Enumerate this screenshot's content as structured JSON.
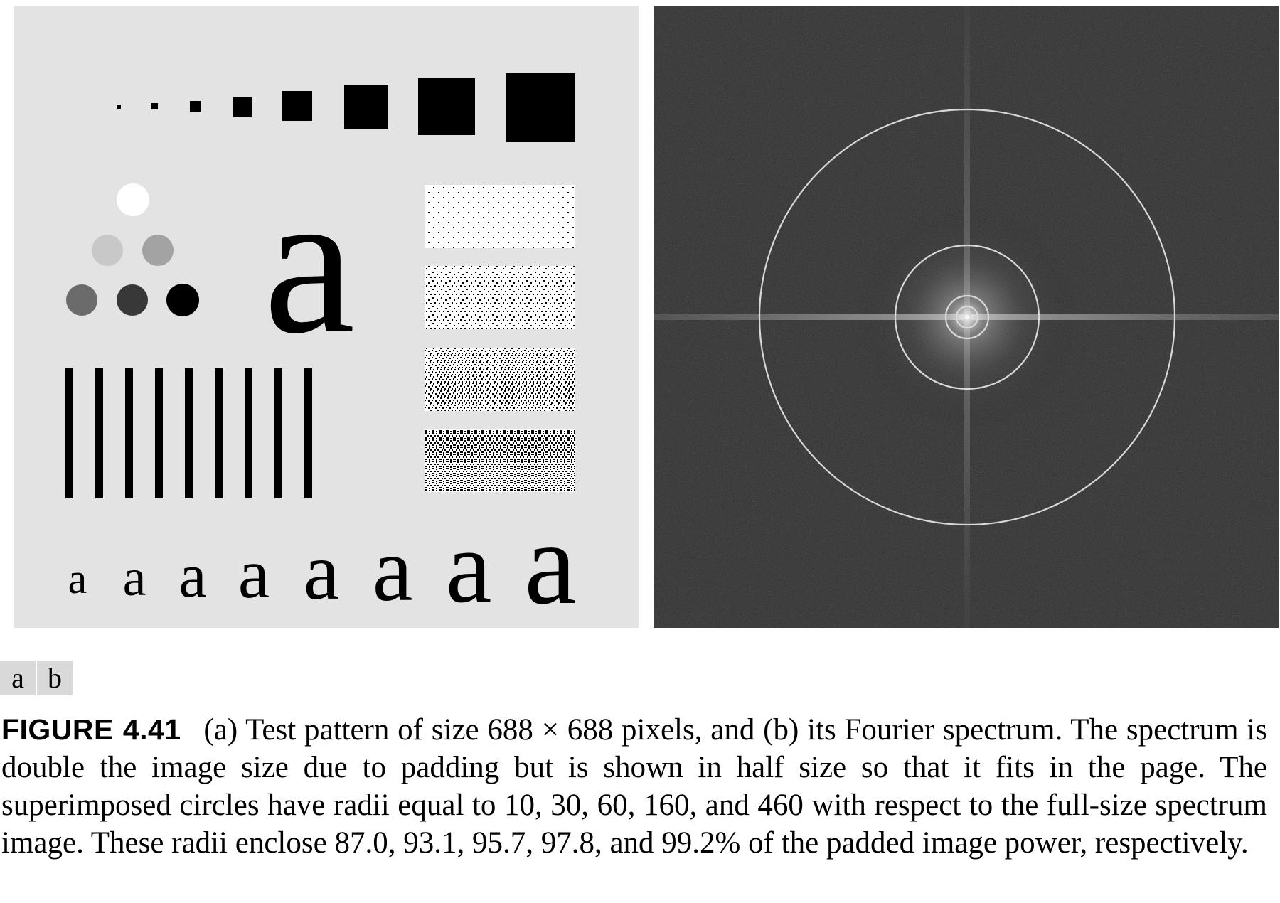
{
  "figure": {
    "panel_a": {
      "glyph_large": "a",
      "glyph_row": [
        "a",
        "a",
        "a",
        "a",
        "a",
        "a",
        "a",
        "a"
      ]
    },
    "subfigure_labels": [
      "a",
      "b"
    ],
    "caption": {
      "number": "FIGURE 4.41",
      "text": "(a) Test pattern of size 688 × 688 pixels, and (b) its Fourier spectrum. The spectrum is double the image size due to padding but is shown in half size so that it fits in the page. The superimposed circles have radii equal to 10, 30, 60, 160, and 460 with respect to the full-size spectrum image. These radii enclose 87.0, 93.1, 95.7, 97.8, and 99.2% of the padded image power, respectively."
    }
  }
}
